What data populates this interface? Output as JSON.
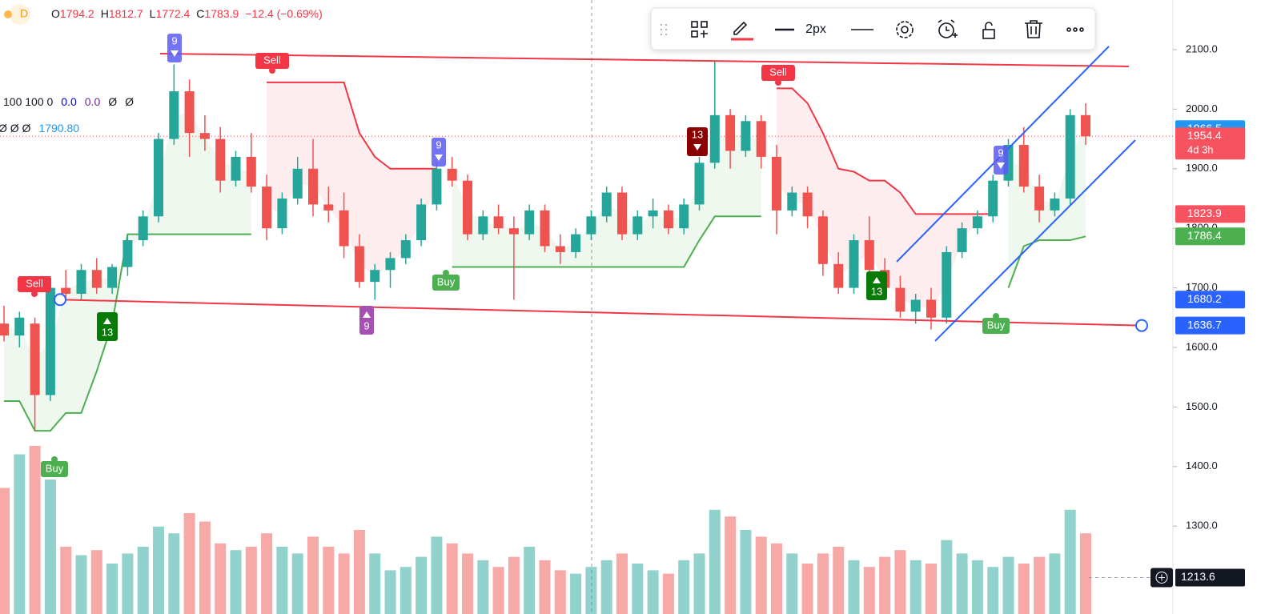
{
  "chart_data": {
    "type": "candlestick",
    "header": {
      "interval": "D",
      "items": [
        {
          "k": "O",
          "v": "1794.2"
        },
        {
          "k": "H",
          "v": "1812.7"
        },
        {
          "k": "L",
          "v": "1772.4"
        },
        {
          "k": "C",
          "v": "1783.9"
        }
      ],
      "change": "−12.4 (−0.69%)"
    },
    "indicator_rows": [
      [
        "100 100 0",
        "0.0",
        "0.0",
        "Ø",
        "Ø"
      ],
      [
        "Ø Ø Ø",
        "1790.80"
      ]
    ],
    "toolbar": {
      "width_label": "2px"
    },
    "ylim": [
      1152.4,
      2183.3
    ],
    "yticks": [
      {
        "value": 1300,
        "label": "1300.0"
      },
      {
        "value": 1400,
        "label": "1400.0"
      },
      {
        "value": 1500,
        "label": "1500.0"
      },
      {
        "value": 1600,
        "label": "1600.0"
      },
      {
        "value": 1700,
        "label": "1700.0"
      },
      {
        "value": 1800,
        "label": "1800.0"
      },
      {
        "value": 1900,
        "label": "1900.0"
      },
      {
        "value": 2000,
        "label": "2000.0"
      },
      {
        "value": 2100,
        "label": "2100.0"
      }
    ],
    "up_color": "#26a69a",
    "down_color": "#ef5350",
    "ohlc": [
      [
        1640,
        1670,
        1610,
        1620
      ],
      [
        1620,
        1660,
        1600,
        1650
      ],
      [
        1640,
        1650,
        1460,
        1520
      ],
      [
        1520,
        1720,
        1510,
        1700
      ],
      [
        1700,
        1730,
        1680,
        1690
      ],
      [
        1690,
        1740,
        1680,
        1730
      ],
      [
        1730,
        1750,
        1690,
        1700
      ],
      [
        1700,
        1740,
        1690,
        1735
      ],
      [
        1735,
        1790,
        1720,
        1780
      ],
      [
        1780,
        1830,
        1770,
        1820
      ],
      [
        1820,
        1960,
        1810,
        1950
      ],
      [
        1950,
        2075,
        1940,
        2030
      ],
      [
        2030,
        2050,
        1920,
        1960
      ],
      [
        1960,
        1990,
        1930,
        1950
      ],
      [
        1950,
        1970,
        1860,
        1880
      ],
      [
        1880,
        1930,
        1870,
        1920
      ],
      [
        1920,
        1960,
        1860,
        1870
      ],
      [
        1870,
        1890,
        1780,
        1800
      ],
      [
        1800,
        1860,
        1790,
        1850
      ],
      [
        1850,
        1920,
        1840,
        1900
      ],
      [
        1900,
        1950,
        1820,
        1840
      ],
      [
        1840,
        1870,
        1810,
        1830
      ],
      [
        1830,
        1860,
        1750,
        1770
      ],
      [
        1770,
        1790,
        1700,
        1710
      ],
      [
        1710,
        1740,
        1680,
        1730
      ],
      [
        1730,
        1760,
        1700,
        1750
      ],
      [
        1750,
        1790,
        1740,
        1780
      ],
      [
        1780,
        1850,
        1770,
        1840
      ],
      [
        1840,
        1910,
        1830,
        1900
      ],
      [
        1900,
        1920,
        1870,
        1880
      ],
      [
        1880,
        1890,
        1780,
        1790
      ],
      [
        1790,
        1830,
        1780,
        1820
      ],
      [
        1820,
        1840,
        1790,
        1800
      ],
      [
        1800,
        1820,
        1680,
        1790
      ],
      [
        1790,
        1840,
        1780,
        1830
      ],
      [
        1830,
        1840,
        1760,
        1770
      ],
      [
        1770,
        1790,
        1740,
        1760
      ],
      [
        1760,
        1800,
        1750,
        1790
      ],
      [
        1790,
        1830,
        1780,
        1820
      ],
      [
        1820,
        1870,
        1810,
        1860
      ],
      [
        1860,
        1870,
        1780,
        1790
      ],
      [
        1790,
        1830,
        1780,
        1820
      ],
      [
        1820,
        1850,
        1800,
        1830
      ],
      [
        1830,
        1840,
        1790,
        1800
      ],
      [
        1800,
        1850,
        1790,
        1840
      ],
      [
        1840,
        1920,
        1830,
        1910
      ],
      [
        1910,
        2080,
        1900,
        1990
      ],
      [
        1990,
        2000,
        1900,
        1930
      ],
      [
        1930,
        1990,
        1920,
        1980
      ],
      [
        1980,
        1990,
        1900,
        1920
      ],
      [
        1920,
        1940,
        1790,
        1830
      ],
      [
        1830,
        1870,
        1820,
        1860
      ],
      [
        1860,
        1870,
        1800,
        1820
      ],
      [
        1820,
        1830,
        1720,
        1740
      ],
      [
        1740,
        1760,
        1690,
        1700
      ],
      [
        1700,
        1790,
        1690,
        1780
      ],
      [
        1780,
        1820,
        1720,
        1730
      ],
      [
        1730,
        1750,
        1690,
        1700
      ],
      [
        1700,
        1720,
        1650,
        1660
      ],
      [
        1660,
        1690,
        1640,
        1680
      ],
      [
        1680,
        1700,
        1630,
        1650
      ],
      [
        1650,
        1770,
        1640,
        1760
      ],
      [
        1760,
        1810,
        1750,
        1800
      ],
      [
        1800,
        1830,
        1790,
        1820
      ],
      [
        1820,
        1890,
        1810,
        1880
      ],
      [
        1880,
        1950,
        1870,
        1940
      ],
      [
        1940,
        1970,
        1860,
        1870
      ],
      [
        1870,
        1890,
        1810,
        1830
      ],
      [
        1830,
        1860,
        1820,
        1850
      ],
      [
        1850,
        2000,
        1840,
        1990
      ],
      [
        1990,
        2010,
        1940,
        1954.4
      ]
    ],
    "volume": [
      75,
      95,
      100,
      80,
      40,
      35,
      38,
      30,
      36,
      40,
      52,
      48,
      60,
      55,
      42,
      38,
      40,
      48,
      40,
      36,
      46,
      40,
      36,
      50,
      36,
      26,
      28,
      34,
      46,
      42,
      36,
      32,
      28,
      34,
      40,
      32,
      26,
      24,
      28,
      32,
      36,
      30,
      26,
      24,
      32,
      36,
      62,
      58,
      50,
      46,
      42,
      36,
      30,
      36,
      40,
      32,
      28,
      34,
      38,
      32,
      30,
      44,
      36,
      32,
      28,
      34,
      30,
      34,
      36,
      62,
      48
    ],
    "supertrend": {
      "up": [
        1510,
        1510,
        1460,
        1460,
        1490,
        1490,
        1560,
        1640,
        1790,
        1790,
        1790,
        1790,
        1790,
        1790,
        1790,
        1790,
        1790,
        null,
        null,
        null,
        null,
        null,
        null,
        null,
        null,
        null,
        null,
        null,
        null,
        1735,
        1735,
        1735,
        1735,
        1735,
        1735,
        1735,
        1735,
        1735,
        1735,
        1735,
        1735,
        1735,
        1735,
        1735,
        1735,
        1780,
        1820,
        1820,
        1820,
        1820,
        null,
        null,
        null,
        null,
        null,
        null,
        null,
        null,
        null,
        null,
        null,
        null,
        null,
        null,
        null,
        1700,
        1770,
        1780,
        1780,
        1780,
        1786.4
      ],
      "down": [
        null,
        null,
        null,
        null,
        null,
        null,
        null,
        null,
        null,
        null,
        null,
        null,
        null,
        null,
        null,
        null,
        null,
        2045,
        2045,
        2045,
        2045,
        2045,
        2045,
        1960,
        1920,
        1900,
        1900,
        1900,
        1900,
        null,
        null,
        null,
        null,
        null,
        null,
        null,
        null,
        null,
        null,
        null,
        null,
        null,
        null,
        null,
        null,
        null,
        null,
        null,
        null,
        null,
        2035,
        2035,
        2010,
        1960,
        1900,
        1895,
        1880,
        1880,
        1860,
        1823.9,
        1823.9,
        1823.9,
        1823.9,
        1823.9,
        1823.9,
        null,
        null,
        null,
        null,
        null,
        null
      ]
    },
    "signals": [
      {
        "text": "Sell"
      },
      {
        "text": "Buy"
      },
      {
        "text": "13"
      },
      {
        "text": "9"
      },
      {
        "text": "Sell"
      },
      {
        "text": "9"
      },
      {
        "text": "9"
      },
      {
        "text": "Buy"
      },
      {
        "text": "13"
      },
      {
        "text": "Sell"
      },
      {
        "text": "13"
      },
      {
        "text": "9"
      },
      {
        "text": "Buy"
      }
    ],
    "trendlines": [
      {
        "color": "#f23645",
        "y": [
          2093.3,
          2071.8
        ]
      },
      {
        "color": "#f23645",
        "y": [
          1680.2,
          1636.7
        ]
      },
      {
        "color": "#2962ff",
        "y": [
          1743.8,
          2105.4
        ]
      },
      {
        "color": "#2962ff",
        "y": [
          1610.8,
          1948.1
        ]
      }
    ],
    "price_tags": [
      {
        "value": 1966.5,
        "color": "#2196f3"
      },
      {
        "value": 1954.4,
        "color": "#f7525f",
        "sub": "4d 3h"
      },
      {
        "value": 1823.9,
        "color": "#f7525f"
      },
      {
        "value": 1786.4,
        "color": "#4caf50"
      },
      {
        "value": 1680.2,
        "color": "#2962ff"
      },
      {
        "value": 1636.7,
        "color": "#2962ff"
      }
    ],
    "crosshair_price": 1213.6
  }
}
